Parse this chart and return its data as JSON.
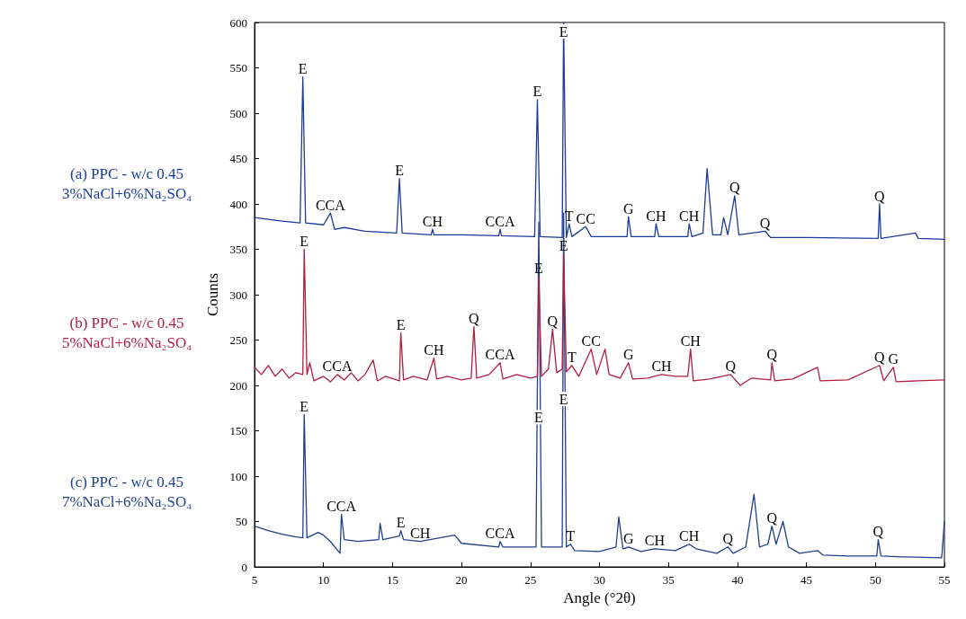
{
  "chart_data": {
    "type": "line",
    "xlabel": "Angle (°2θ)",
    "ylabel": "Counts",
    "xlim": [
      5,
      55
    ],
    "ylim": [
      0,
      600
    ],
    "xticks": [
      5,
      10,
      15,
      20,
      25,
      30,
      35,
      40,
      45,
      50,
      55
    ],
    "yticks": [
      0,
      50,
      100,
      150,
      200,
      250,
      300,
      350,
      400,
      450,
      500,
      550,
      600
    ],
    "grid": false,
    "legend": false,
    "marker": "none",
    "line_style": "solid",
    "series": [
      {
        "name": "(a) PPC - w/c 0.45\n3%NaCl+6%Na₂SO₄",
        "color": "#1a3a9c",
        "x": [
          5,
          6,
          7,
          8.3,
          8.5,
          8.7,
          10,
          10.5,
          10.8,
          11.5,
          13,
          15.3,
          15.5,
          15.7,
          17.8,
          17.9,
          18,
          20,
          22.7,
          22.8,
          22.9,
          25.3,
          25.5,
          25.7,
          27.3,
          27.4,
          27.6,
          27.8,
          28,
          29,
          29.4,
          32,
          32.1,
          32.3,
          34,
          34.1,
          34.3,
          36.4,
          36.5,
          36.7,
          37.5,
          37.8,
          38.2,
          38.8,
          39,
          39.3,
          39.8,
          40.1,
          42,
          42.4,
          45,
          50.2,
          50.3,
          50.4,
          52.9,
          53.1,
          55
        ],
        "values": [
          385,
          383,
          381,
          379,
          540,
          379,
          377,
          390,
          372,
          374,
          370,
          368,
          428,
          368,
          366,
          372,
          366,
          366,
          365,
          372,
          365,
          364,
          515,
          364,
          363,
          600,
          363,
          378,
          364,
          375,
          364,
          364,
          386,
          364,
          364,
          378,
          364,
          364,
          378,
          364,
          368,
          439,
          366,
          366,
          385,
          366,
          409,
          366,
          370,
          363,
          363,
          362,
          400,
          362,
          368,
          362,
          361
        ]
      },
      {
        "name": "(b) PPC - w/c 0.45\n5%NaCl+6%Na₂SO₄",
        "color": "#b01e40",
        "x": [
          5,
          5.5,
          6,
          6.5,
          7,
          7.5,
          8,
          8.5,
          8.6,
          8.8,
          9,
          9.3,
          10,
          10.5,
          11,
          11.5,
          12,
          12.5,
          13,
          13.6,
          13.9,
          14.5,
          15.5,
          15.6,
          15.8,
          16.5,
          17.5,
          18,
          18.2,
          19,
          20,
          20.7,
          20.9,
          21.1,
          22,
          22.8,
          23,
          24,
          25,
          25.5,
          25.6,
          25.8,
          26.3,
          26.6,
          26.9,
          27.3,
          27.4,
          27.6,
          28,
          28.5,
          29.4,
          29.8,
          30.4,
          30.7,
          31.5,
          32.1,
          32.4,
          33.5,
          34.5,
          35.5,
          36.4,
          36.6,
          36.8,
          38,
          39.5,
          40.2,
          41,
          42.4,
          42.5,
          42.7,
          44,
          45.8,
          46,
          48,
          50.3,
          50.6,
          51.3,
          51.5,
          53,
          55
        ],
        "values": [
          220,
          212,
          222,
          210,
          218,
          208,
          214,
          212,
          350,
          212,
          225,
          205,
          210,
          204,
          212,
          206,
          214,
          205,
          212,
          228,
          205,
          210,
          205,
          258,
          206,
          210,
          206,
          230,
          207,
          210,
          206,
          208,
          265,
          208,
          212,
          225,
          207,
          212,
          208,
          210,
          320,
          210,
          218,
          262,
          214,
          218,
          345,
          215,
          222,
          210,
          240,
          212,
          240,
          212,
          208,
          225,
          207,
          208,
          212,
          210,
          210,
          240,
          205,
          207,
          212,
          200,
          208,
          206,
          225,
          205,
          207,
          220,
          205,
          206,
          222,
          205,
          220,
          204,
          205,
          206
        ]
      },
      {
        "name": "(c) PPC - w/c 0.45\n7%NaCl+6%Na₂SO₄",
        "color": "#1e3f8a",
        "x": [
          5,
          6,
          7,
          8,
          8.5,
          8.6,
          8.8,
          9.6,
          10,
          10.5,
          11.2,
          11.3,
          11.5,
          12.5,
          14,
          14.1,
          14.3,
          15.5,
          15.6,
          15.8,
          17,
          19.5,
          20,
          22.7,
          22.8,
          23,
          25.4,
          25.6,
          25.8,
          27.3,
          27.4,
          27.6,
          27.9,
          28.2,
          30,
          31.2,
          31.4,
          31.7,
          32.1,
          33,
          34,
          35.5,
          36.5,
          37,
          38.5,
          39.3,
          39.7,
          40.6,
          41.2,
          41.6,
          42.2,
          42.5,
          42.8,
          43.3,
          43.7,
          44.5,
          45.8,
          46.2,
          48,
          50.1,
          50.2,
          50.4,
          52,
          54.8,
          55
        ],
        "values": [
          45,
          40,
          36,
          33,
          32,
          168,
          32,
          38,
          35,
          28,
          15,
          58,
          30,
          28,
          30,
          48,
          30,
          34,
          40,
          30,
          28,
          35,
          26,
          22,
          28,
          22,
          22,
          380,
          22,
          22,
          390,
          22,
          25,
          18,
          17,
          22,
          55,
          20,
          22,
          17,
          20,
          18,
          25,
          20,
          15,
          22,
          15,
          22,
          80,
          22,
          25,
          45,
          25,
          50,
          22,
          15,
          18,
          13,
          12,
          12,
          30,
          12,
          11,
          10,
          50
        ]
      }
    ],
    "annotations": [
      {
        "text": "E",
        "x": 8.5,
        "y": 540
      },
      {
        "text": "CCA",
        "x": 10.5,
        "y": 390
      },
      {
        "text": "E",
        "x": 15.5,
        "y": 428
      },
      {
        "text": "CH",
        "x": 17.9,
        "y": 372
      },
      {
        "text": "CCA",
        "x": 22.8,
        "y": 372
      },
      {
        "text": "E",
        "x": 25.5,
        "y": 515
      },
      {
        "text": "E",
        "x": 27.4,
        "y": 590
      },
      {
        "text": "T",
        "x": 27.8,
        "y": 378
      },
      {
        "text": "CC",
        "x": 29,
        "y": 375
      },
      {
        "text": "G",
        "x": 32.1,
        "y": 386
      },
      {
        "text": "CH",
        "x": 34.1,
        "y": 378
      },
      {
        "text": "CH",
        "x": 36.5,
        "y": 378
      },
      {
        "text": "Q",
        "x": 39.8,
        "y": 409
      },
      {
        "text": "Q",
        "x": 42,
        "y": 370
      },
      {
        "text": "Q",
        "x": 50.3,
        "y": 400
      },
      {
        "text": "E",
        "x": 8.6,
        "y": 350
      },
      {
        "text": "CCA",
        "x": 11,
        "y": 212
      },
      {
        "text": "E",
        "x": 15.6,
        "y": 258
      },
      {
        "text": "CH",
        "x": 18,
        "y": 230
      },
      {
        "text": "Q",
        "x": 20.9,
        "y": 265
      },
      {
        "text": "CCA",
        "x": 22.8,
        "y": 225
      },
      {
        "text": "E",
        "x": 25.6,
        "y": 320
      },
      {
        "text": "Q",
        "x": 26.6,
        "y": 262
      },
      {
        "text": "E",
        "x": 27.4,
        "y": 345
      },
      {
        "text": "T",
        "x": 28,
        "y": 222
      },
      {
        "text": "CC",
        "x": 29.4,
        "y": 240
      },
      {
        "text": "G",
        "x": 32.1,
        "y": 225
      },
      {
        "text": "CH",
        "x": 34.5,
        "y": 212
      },
      {
        "text": "CH",
        "x": 36.6,
        "y": 240
      },
      {
        "text": "Q",
        "x": 39.5,
        "y": 212
      },
      {
        "text": "Q",
        "x": 42.5,
        "y": 225
      },
      {
        "text": "Q",
        "x": 50.3,
        "y": 222
      },
      {
        "text": "G",
        "x": 51.3,
        "y": 220
      },
      {
        "text": "E",
        "x": 8.6,
        "y": 168
      },
      {
        "text": "CCA",
        "x": 11.3,
        "y": 58
      },
      {
        "text": "E",
        "x": 15.6,
        "y": 40
      },
      {
        "text": "CH",
        "x": 17,
        "y": 28
      },
      {
        "text": "CCA",
        "x": 22.8,
        "y": 28
      },
      {
        "text": "E",
        "x": 25.6,
        "y": 165
      },
      {
        "text": "E",
        "x": 27.4,
        "y": 185
      },
      {
        "text": "T",
        "x": 27.9,
        "y": 25
      },
      {
        "text": "G",
        "x": 32.1,
        "y": 22
      },
      {
        "text": "CH",
        "x": 34,
        "y": 20
      },
      {
        "text": "CH",
        "x": 36.5,
        "y": 25
      },
      {
        "text": "Q",
        "x": 39.3,
        "y": 22
      },
      {
        "text": "Q",
        "x": 42.5,
        "y": 45
      },
      {
        "text": "Q",
        "x": 50.2,
        "y": 30
      }
    ]
  }
}
